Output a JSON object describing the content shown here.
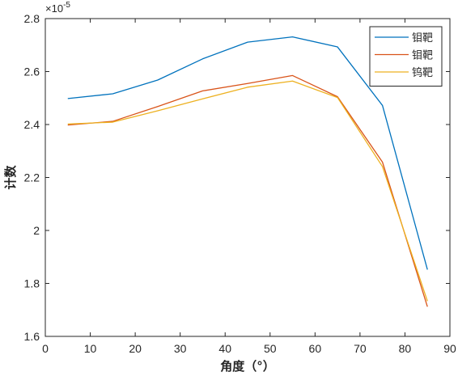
{
  "chart_data": {
    "type": "line",
    "xlabel": "角度（°）",
    "ylabel": "计数",
    "y_exponent_label": "×10",
    "y_exponent_power": "-5",
    "xlim": [
      0,
      90
    ],
    "ylim": [
      1.6,
      2.8
    ],
    "x_ticks": [
      0,
      10,
      20,
      30,
      40,
      50,
      60,
      70,
      80,
      90
    ],
    "y_ticks": [
      1.6,
      1.8,
      2,
      2.2,
      2.4,
      2.6,
      2.8
    ],
    "x_tick_labels": [
      "0",
      "10",
      "20",
      "30",
      "40",
      "50",
      "60",
      "70",
      "80",
      "90"
    ],
    "y_tick_labels": [
      "1.6",
      "1.8",
      "2",
      "2.2",
      "2.4",
      "2.6",
      "2.8"
    ],
    "grid": false,
    "legend_position": "top-right",
    "x": [
      5,
      15,
      25,
      35,
      45,
      55,
      65,
      75,
      85
    ],
    "series": [
      {
        "name": "钼靶",
        "color": "#0072BD",
        "values": [
          2.498,
          2.516,
          2.568,
          2.648,
          2.711,
          2.731,
          2.693,
          2.472,
          1.852
        ]
      },
      {
        "name": "钼靶",
        "color": "#D95319",
        "values": [
          2.398,
          2.412,
          2.468,
          2.527,
          2.555,
          2.585,
          2.505,
          2.258,
          1.712
        ]
      },
      {
        "name": "钨靶",
        "color": "#EDB120",
        "values": [
          2.402,
          2.409,
          2.452,
          2.497,
          2.541,
          2.564,
          2.502,
          2.241,
          1.733
        ]
      }
    ]
  }
}
